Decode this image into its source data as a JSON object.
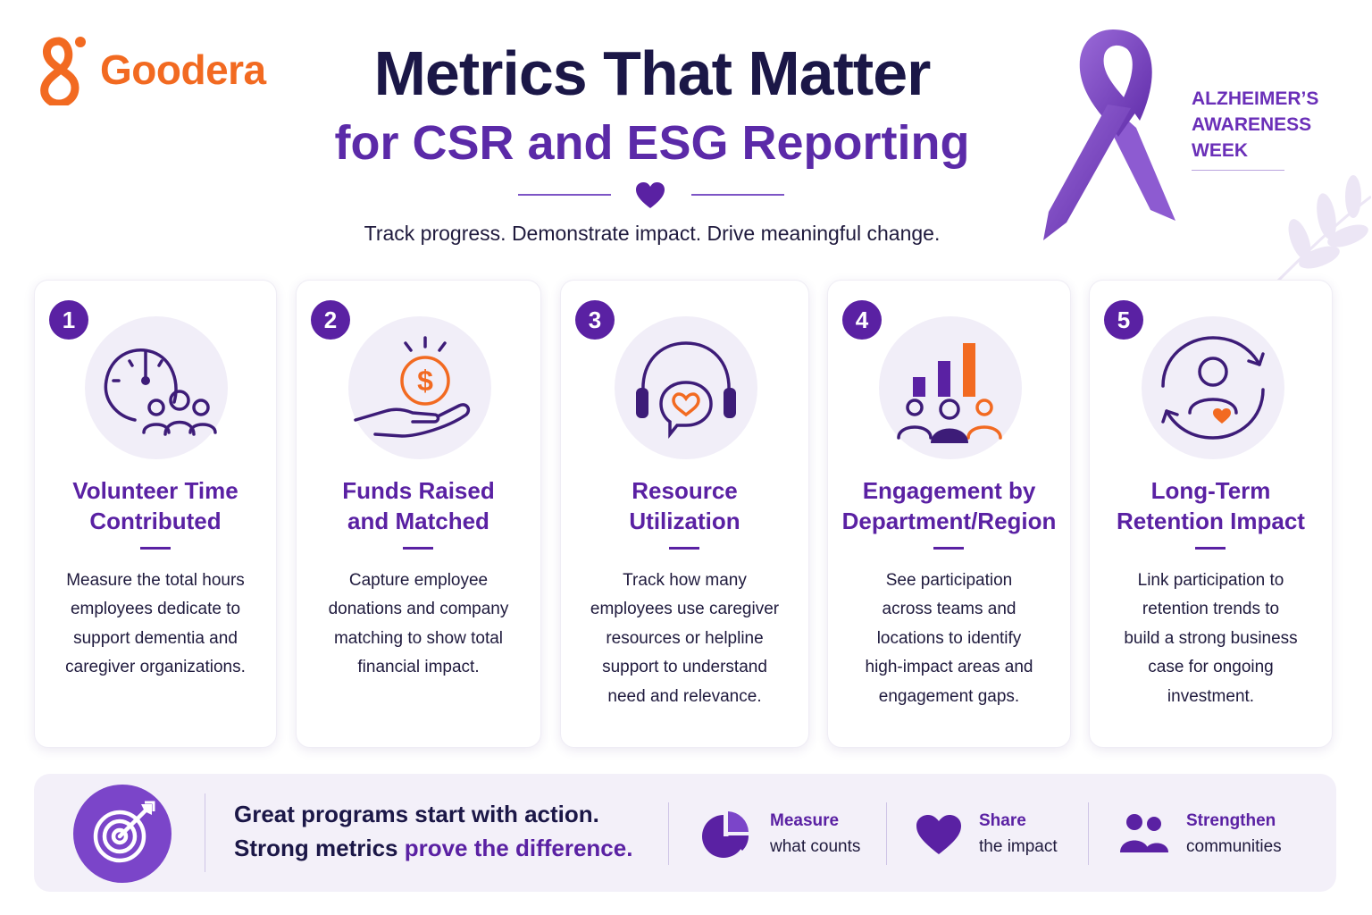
{
  "brand": {
    "name": "Goodera",
    "color": "#f26a21",
    "icon": "goodera-logo-icon"
  },
  "header": {
    "title": "Metrics That Matter",
    "subtitle": "for CSR and ESG Reporting",
    "tagline": "Track progress. Demonstrate impact. Drive meaningful change."
  },
  "awareness": {
    "lines": [
      "ALZHEIMER’S",
      "AWARENESS",
      "WEEK"
    ],
    "ribbon_color": "#7b45c9",
    "icon": "awareness-ribbon-icon"
  },
  "colors": {
    "primary": "#5a21a3",
    "accent": "#f26a21",
    "navy": "#1b1747",
    "tint": "#f1eef8"
  },
  "cards": [
    {
      "number": "1",
      "icon": "clock-people-icon",
      "title_lines": [
        "Volunteer Time",
        "Contributed"
      ],
      "desc_lines": [
        "Measure the total hours",
        "employees dedicate to",
        "support dementia and",
        "caregiver organizations."
      ]
    },
    {
      "number": "2",
      "icon": "hand-coin-icon",
      "title_lines": [
        "Funds Raised",
        "and Matched"
      ],
      "desc_lines": [
        "Capture employee",
        "donations and company",
        "matching to show total",
        "financial impact."
      ]
    },
    {
      "number": "3",
      "icon": "headset-heart-icon",
      "title_lines": [
        "Resource",
        "Utilization"
      ],
      "desc_lines": [
        "Track how many",
        "employees use caregiver",
        "resources or helpline",
        "support to understand",
        "need and relevance."
      ]
    },
    {
      "number": "4",
      "icon": "bar-chart-people-icon",
      "title_lines": [
        "Engagement by",
        "Department/Region"
      ],
      "desc_lines": [
        "See participation",
        "across teams and",
        "locations to identify",
        "high-impact areas and",
        "engagement gaps."
      ]
    },
    {
      "number": "5",
      "icon": "person-cycle-icon",
      "title_lines": [
        "Long-Term",
        "Retention Impact"
      ],
      "desc_lines": [
        "Link participation to",
        "retention trends to",
        "build a strong business",
        "case for ongoing",
        "investment."
      ]
    }
  ],
  "banner": {
    "icon": "target-icon",
    "line1": "Great programs start with action.",
    "line2_prefix": "Strong metrics ",
    "line2_accent": "prove the difference.",
    "items": [
      {
        "icon": "pie-chart-icon",
        "label": "Measure",
        "sub": "what counts"
      },
      {
        "icon": "heart-icon",
        "label": "Share",
        "sub": "the impact"
      },
      {
        "icon": "people-icon",
        "label": "Strengthen",
        "sub": "communities"
      }
    ]
  }
}
